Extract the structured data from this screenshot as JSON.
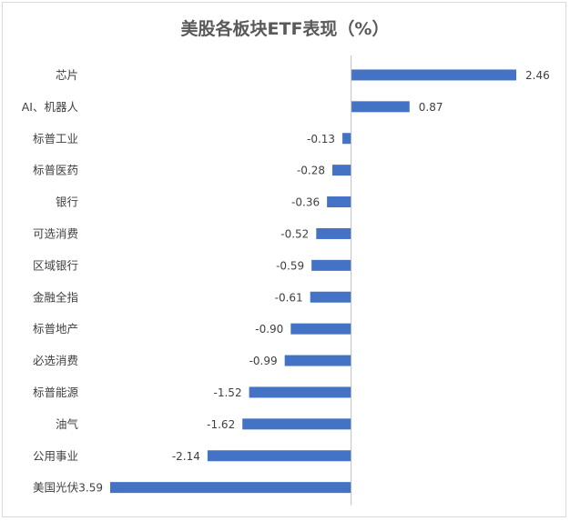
{
  "chart_data": {
    "type": "bar",
    "orientation": "horizontal",
    "title": "美股各板块ETF表现（%）",
    "xlabel": "",
    "ylabel": "",
    "grid": false,
    "categories": [
      "芯片",
      "AI、机器人",
      "标普工业",
      "标普医药",
      "银行",
      "可选消费",
      "区域银行",
      "金融全指",
      "标普地产",
      "必选消费",
      "标普能源",
      "油气",
      "公用事业",
      "美国光伏"
    ],
    "values": [
      2.46,
      0.87,
      -0.13,
      -0.28,
      -0.36,
      -0.52,
      -0.59,
      -0.61,
      -0.9,
      -0.99,
      -1.52,
      -1.62,
      -2.14,
      -3.59
    ],
    "value_labels": [
      "2.46",
      "0.87",
      "-0.13",
      "-0.28",
      "-0.36",
      "-0.52",
      "-0.59",
      "-0.61",
      "-0.90",
      "-0.99",
      "-1.52",
      "-1.62",
      "-2.14",
      "-3.59"
    ],
    "xlim": [
      -3.59,
      2.46
    ],
    "bar_color": "#4472c4"
  }
}
